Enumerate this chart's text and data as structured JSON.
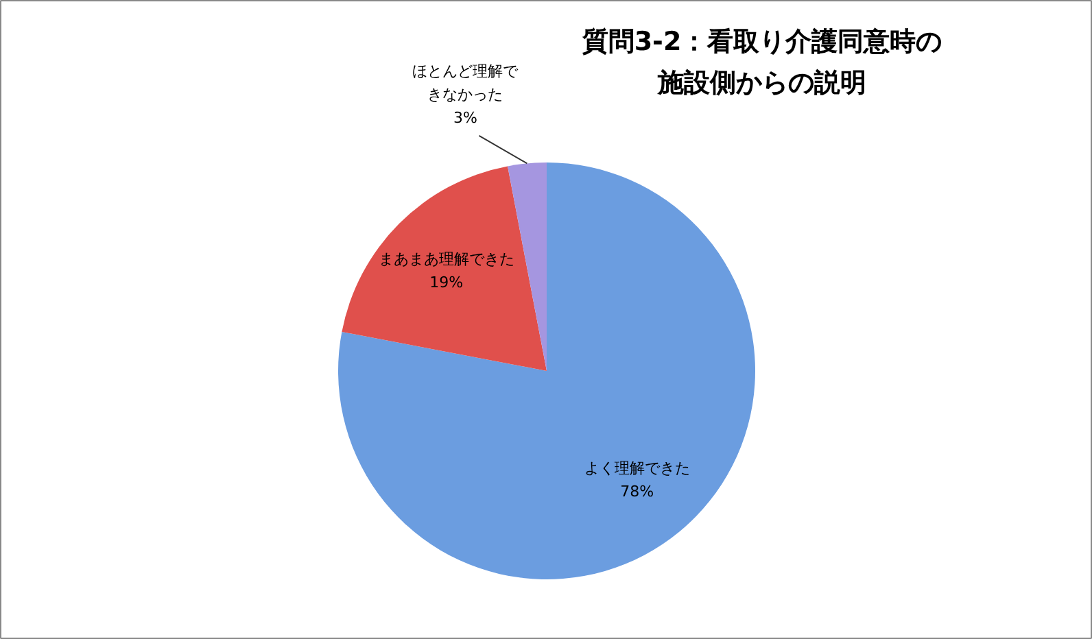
{
  "chart_data": {
    "type": "pie",
    "title": "質問3-2：看取り介護同意時の施設側からの説明",
    "categories": [
      "よく理解できた",
      "まあまあ理解できた",
      "ほとんど理解できなかった"
    ],
    "values": [
      78,
      19,
      3
    ],
    "colors": [
      "#6b9de0",
      "#e0504c",
      "#a596e0"
    ],
    "value_labels": [
      "78%",
      "19%",
      "3%"
    ]
  }
}
